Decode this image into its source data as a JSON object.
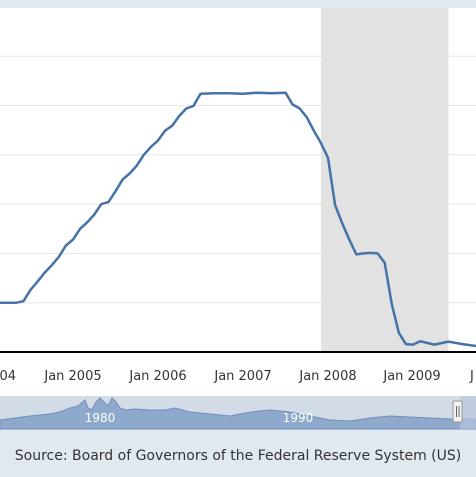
{
  "chart_data": {
    "type": "line",
    "title": "",
    "xlabel": "",
    "ylabel": "",
    "x_tick_labels": [
      "04",
      "Jan 2005",
      "Jan 2006",
      "Jan 2007",
      "Jan 2008",
      "Jan 2009",
      "J"
    ],
    "navigator_labels": [
      "1980",
      "1990"
    ],
    "recession": {
      "start": "2007-12",
      "end": "2009-06"
    },
    "grid": true,
    "series": [
      {
        "color": "#4572a7",
        "x": [
          "2004-01",
          "2004-03",
          "2004-05",
          "2004-06",
          "2004-07",
          "2004-08",
          "2004-09",
          "2004-10",
          "2004-11",
          "2004-12",
          "2005-01",
          "2005-02",
          "2005-03",
          "2005-04",
          "2005-05",
          "2005-06",
          "2005-07",
          "2005-08",
          "2005-09",
          "2005-10",
          "2005-11",
          "2005-12",
          "2006-01",
          "2006-02",
          "2006-03",
          "2006-04",
          "2006-05",
          "2006-06",
          "2006-07",
          "2006-09",
          "2006-11",
          "2007-01",
          "2007-03",
          "2007-05",
          "2007-07",
          "2007-08",
          "2007-09",
          "2007-10",
          "2007-11",
          "2007-12",
          "2008-01",
          "2008-02",
          "2008-03",
          "2008-04",
          "2008-05",
          "2008-06",
          "2008-07",
          "2008-08",
          "2008-09",
          "2008-10",
          "2008-11",
          "2008-12",
          "2009-01",
          "2009-02",
          "2009-04",
          "2009-06",
          "2009-08",
          "2009-10"
        ],
        "values": [
          1.0,
          1.0,
          1.0,
          1.03,
          1.26,
          1.43,
          1.61,
          1.76,
          1.93,
          2.16,
          2.28,
          2.5,
          2.63,
          2.79,
          3.0,
          3.04,
          3.26,
          3.5,
          3.62,
          3.78,
          4.0,
          4.16,
          4.29,
          4.49,
          4.59,
          4.79,
          4.94,
          4.99,
          5.24,
          5.25,
          5.25,
          5.24,
          5.26,
          5.25,
          5.26,
          5.02,
          4.94,
          4.76,
          4.49,
          4.24,
          3.94,
          2.98,
          2.61,
          2.28,
          1.98,
          2.0,
          2.01,
          2.0,
          1.81,
          0.97,
          0.39,
          0.16,
          0.15,
          0.22,
          0.15,
          0.21,
          0.16,
          0.12
        ]
      }
    ]
  },
  "footer": {
    "source": "Source: Board of Governors of the Federal Reserve System (US)"
  }
}
